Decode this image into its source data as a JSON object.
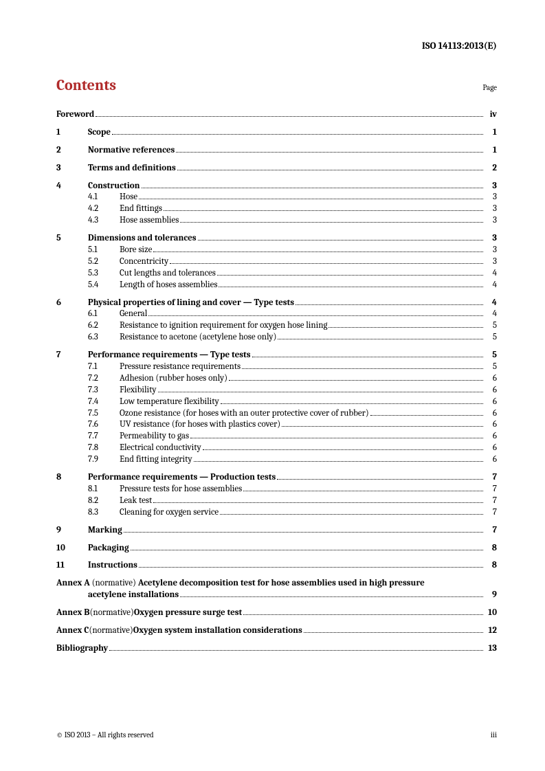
{
  "docId": "ISO 14113:2013(E)",
  "contentsTitle": "Contents",
  "pageLabel": "Page",
  "footer": {
    "copyright": "© ISO 2013 – All rights reserved",
    "pageNum": "iii"
  },
  "frontmatter": [
    {
      "label": "Foreword",
      "page": "iv"
    }
  ],
  "sections": [
    {
      "num": "1",
      "label": "Scope",
      "page": "1",
      "subs": []
    },
    {
      "num": "2",
      "label": "Normative references",
      "page": "1",
      "subs": []
    },
    {
      "num": "3",
      "label": "Terms and definitions",
      "page": "2",
      "subs": []
    },
    {
      "num": "4",
      "label": "Construction",
      "page": "3",
      "subs": [
        {
          "num": "4.1",
          "label": "Hose",
          "page": "3"
        },
        {
          "num": "4.2",
          "label": "End fittings",
          "page": "3"
        },
        {
          "num": "4.3",
          "label": "Hose assemblies",
          "page": "3"
        }
      ]
    },
    {
      "num": "5",
      "label": "Dimensions and tolerances",
      "page": "3",
      "subs": [
        {
          "num": "5.1",
          "label": "Bore size",
          "page": "3"
        },
        {
          "num": "5.2",
          "label": "Concentricity",
          "page": "3"
        },
        {
          "num": "5.3",
          "label": "Cut lengths and tolerances",
          "page": "4"
        },
        {
          "num": "5.4",
          "label": "Length of hoses assemblies",
          "page": "4"
        }
      ]
    },
    {
      "num": "6",
      "label": "Physical properties of lining and cover — Type tests",
      "page": "4",
      "subs": [
        {
          "num": "6.1",
          "label": "General",
          "page": "4"
        },
        {
          "num": "6.2",
          "label": "Resistance to ignition requirement for oxygen hose lining",
          "page": "5"
        },
        {
          "num": "6.3",
          "label": "Resistance to acetone (acetylene hose only)",
          "page": "5"
        }
      ]
    },
    {
      "num": "7",
      "label": "Performance requirements — Type tests",
      "page": "5",
      "subs": [
        {
          "num": "7.1",
          "label": "Pressure resistance requirements",
          "page": "5"
        },
        {
          "num": "7.2",
          "label": "Adhesion (rubber hoses only)",
          "page": "6"
        },
        {
          "num": "7.3",
          "label": "Flexibility",
          "page": "6"
        },
        {
          "num": "7.4",
          "label": "Low temperature flexibility",
          "page": "6"
        },
        {
          "num": "7.5",
          "label": "Ozone resistance (for hoses with an outer protective cover of rubber)",
          "page": "6"
        },
        {
          "num": "7.6",
          "label": "UV resistance (for hoses with plastics cover)",
          "page": "6"
        },
        {
          "num": "7.7",
          "label": "Permeability to gas",
          "page": "6"
        },
        {
          "num": "7.8",
          "label": "Electrical conductivity",
          "page": "6"
        },
        {
          "num": "7.9",
          "label": "End fitting integrity",
          "page": "6"
        }
      ]
    },
    {
      "num": "8",
      "label": "Performance requirements — Production tests",
      "page": "7",
      "subs": [
        {
          "num": "8.1",
          "label": "Pressure tests for hose assemblies",
          "page": "7"
        },
        {
          "num": "8.2",
          "label": "Leak test",
          "page": "7"
        },
        {
          "num": "8.3",
          "label": "Cleaning for oxygen service",
          "page": "7"
        }
      ]
    },
    {
      "num": "9",
      "label": "Marking",
      "page": "7",
      "subs": []
    },
    {
      "num": "10",
      "label": "Packaging",
      "page": "8",
      "subs": []
    },
    {
      "num": "11",
      "label": "Instructions",
      "page": "8",
      "subs": []
    }
  ],
  "annexes": [
    {
      "prefix": "Annex A",
      "norm": " (normative) ",
      "title": "Acetylene decomposition test for hose assemblies used in high pressure",
      "title2": "acetylene installations",
      "page": "9",
      "wrap": true
    },
    {
      "prefix": "Annex B",
      "norm": " (normative) ",
      "title": "Oxygen pressure surge test",
      "page": "10",
      "wrap": false
    },
    {
      "prefix": "Annex C",
      "norm": " (normative) ",
      "title": "Oxygen system installation considerations",
      "page": "12",
      "wrap": false
    }
  ],
  "backmatter": [
    {
      "label": "Bibliography",
      "page": "13"
    }
  ],
  "colors": {
    "heading": "#b02a2a",
    "text": "#000000",
    "background": "#ffffff"
  }
}
